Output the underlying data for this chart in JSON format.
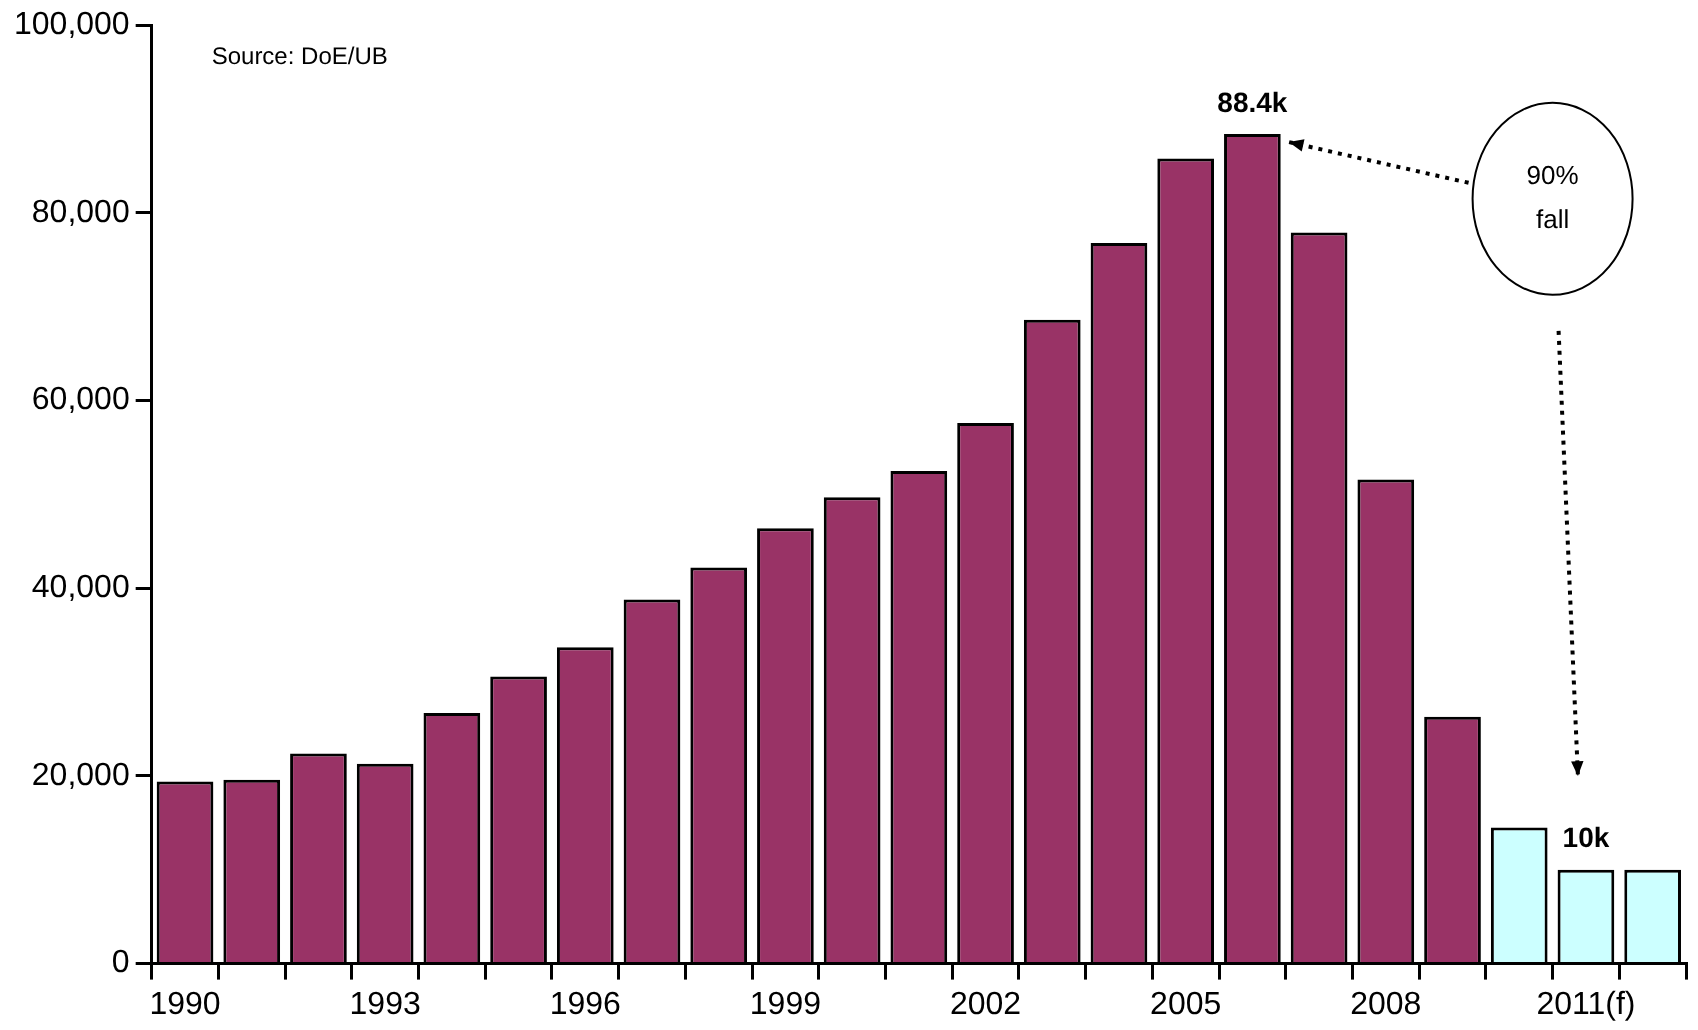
{
  "chart_data": {
    "type": "bar",
    "categories": [
      "1990",
      null,
      null,
      "1993",
      null,
      null,
      "1996",
      null,
      null,
      "1999",
      null,
      null,
      "2002",
      null,
      null,
      "2005",
      null,
      null,
      "2008",
      null,
      null,
      "2011(f)",
      null
    ],
    "values": [
      19400,
      19600,
      22400,
      21300,
      26700,
      30600,
      33700,
      38800,
      42200,
      46400,
      49700,
      52500,
      57600,
      68600,
      76800,
      85800,
      88400,
      77900,
      51600,
      26300,
      14500,
      10000,
      10000
    ],
    "colors": [
      "#993366",
      "#993366",
      "#993366",
      "#993366",
      "#993366",
      "#993366",
      "#993366",
      "#993366",
      "#993366",
      "#993366",
      "#993366",
      "#993366",
      "#993366",
      "#993366",
      "#993366",
      "#993366",
      "#993366",
      "#993366",
      "#993366",
      "#993366",
      "#ccffff",
      "#ccffff",
      "#ccffff"
    ],
    "value_labels": [
      null,
      null,
      null,
      null,
      null,
      null,
      null,
      null,
      null,
      null,
      null,
      null,
      null,
      null,
      null,
      null,
      "88.4k",
      null,
      null,
      null,
      null,
      "10k",
      null
    ],
    "ylim": [
      0,
      100000
    ],
    "yticks": [
      {
        "value": 0,
        "label": "0"
      },
      {
        "value": 20000,
        "label": "20,000"
      },
      {
        "value": 40000,
        "label": "40,000"
      },
      {
        "value": 60000,
        "label": "60,000"
      },
      {
        "value": 80000,
        "label": "80,000"
      },
      {
        "value": 100000,
        "label": "100,000"
      }
    ],
    "grid": false,
    "legend": false,
    "annotations": [
      "Source: DoE/UB",
      "90% fall"
    ]
  }
}
